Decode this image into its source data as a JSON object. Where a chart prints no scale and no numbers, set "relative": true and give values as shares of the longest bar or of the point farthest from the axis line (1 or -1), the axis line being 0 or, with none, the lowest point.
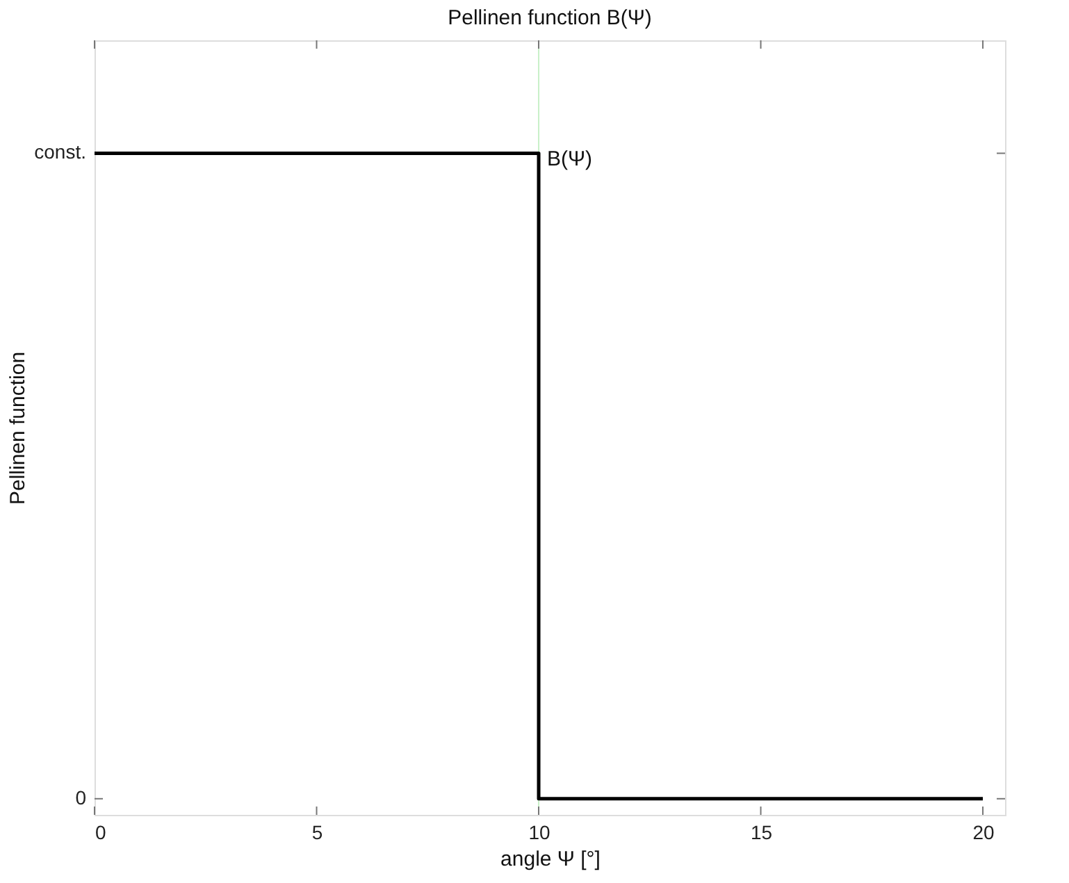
{
  "chart_data": {
    "type": "step",
    "title": "Pellinen function B(Ψ)",
    "xlabel": "angle Ψ [°]",
    "ylabel": "Pellinen function",
    "x": [
      0,
      10,
      20
    ],
    "series": [
      {
        "color": "#000000",
        "values": [
          1,
          0,
          0
        ]
      }
    ],
    "xlim": [
      0,
      20.5
    ],
    "xticks": [
      0,
      5,
      10,
      15,
      20
    ],
    "relative": true,
    "ref_lines": [
      {
        "axis": "x",
        "value": 10,
        "label": null,
        "color": "#c8f0c8"
      }
    ],
    "annotations": [
      {
        "text": "B(Ψ)",
        "x": 10,
        "y": 1
      },
      "const.",
      "0"
    ],
    "grid": false
  }
}
